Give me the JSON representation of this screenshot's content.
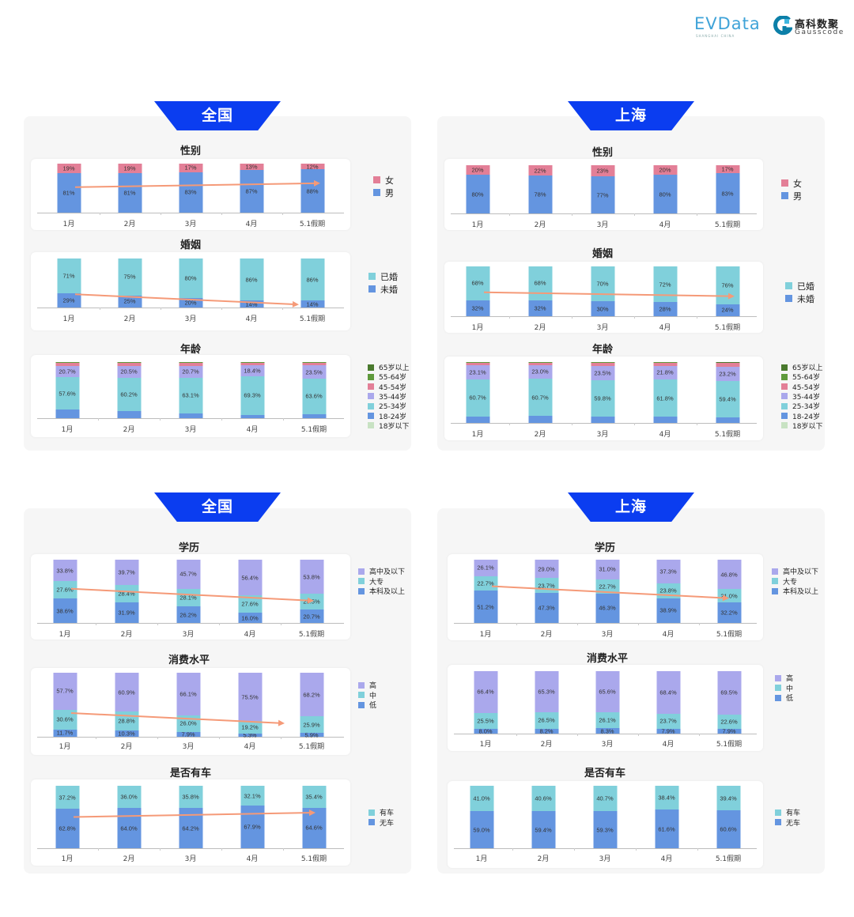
{
  "logos": {
    "evdata": "EVData",
    "evdata_sub": "SHANGHAI CHINA",
    "gauss_cn": "高科数聚",
    "gauss_en": "Gausscode"
  },
  "panels": [
    {
      "region": "全国"
    },
    {
      "region": "上海"
    },
    {
      "region": "全国"
    },
    {
      "region": "上海"
    }
  ],
  "chart_data": [
    {
      "type": "bar",
      "stacked": true,
      "title": "性别",
      "categories": [
        "1月",
        "2月",
        "3月",
        "4月",
        "5.1假期"
      ],
      "ylim": [
        0,
        100
      ],
      "label_decimals": 0,
      "legend": "right",
      "trend_arrow": true,
      "series": [
        {
          "name": "男",
          "color": "#6495e0",
          "show_labels": true,
          "values": [
            81,
            81,
            83,
            87,
            88
          ]
        },
        {
          "name": "女",
          "color": "#e37f97",
          "show_labels": true,
          "values": [
            19,
            19,
            17,
            13,
            12
          ]
        }
      ]
    },
    {
      "type": "bar",
      "stacked": true,
      "title": "婚姻",
      "categories": [
        "1月",
        "2月",
        "3月",
        "4月",
        "5.1假期"
      ],
      "ylim": [
        0,
        100
      ],
      "label_decimals": 0,
      "legend": "right",
      "trend_arrow": true,
      "series": [
        {
          "name": "未婚",
          "color": "#6495e0",
          "show_labels": true,
          "values": [
            29,
            25,
            20,
            14,
            14
          ]
        },
        {
          "name": "已婚",
          "color": "#80d0db",
          "show_labels": true,
          "values": [
            71,
            75,
            80,
            86,
            86
          ]
        }
      ]
    },
    {
      "type": "bar",
      "stacked": true,
      "title": "年龄",
      "categories": [
        "1月",
        "2月",
        "3月",
        "4月",
        "5.1假期"
      ],
      "ylim": [
        0,
        100
      ],
      "label_decimals": 1,
      "legend": "right",
      "trend_arrow": false,
      "series": [
        {
          "name": "18岁以下",
          "color": "#c8e2c3",
          "show_labels": false,
          "values": [
            0,
            0,
            0,
            0,
            0
          ]
        },
        {
          "name": "18-24岁",
          "color": "#6495e0",
          "show_labels": false,
          "values": [
            15,
            12.3,
            9,
            6,
            7
          ]
        },
        {
          "name": "25-34岁",
          "color": "#80d0db",
          "show_labels": true,
          "values": [
            57.6,
            60.2,
            63.1,
            69.3,
            63.6
          ]
        },
        {
          "name": "35-44岁",
          "color": "#aaa8ec",
          "show_labels": true,
          "values": [
            20.7,
            20.5,
            20.7,
            18.4,
            23.5
          ]
        },
        {
          "name": "45-54岁",
          "color": "#e37f97",
          "show_labels": false,
          "values": [
            6.2,
            6.5,
            6.6,
            5.8,
            5.4
          ]
        },
        {
          "name": "55-64岁",
          "color": "#5f9a3c",
          "show_labels": false,
          "values": [
            0.4,
            0.4,
            0.5,
            0.4,
            0.4
          ]
        },
        {
          "name": "65岁以上",
          "color": "#4a7a2e",
          "show_labels": false,
          "values": [
            0.1,
            0.1,
            0.1,
            0.1,
            0.1
          ]
        }
      ]
    },
    {
      "type": "bar",
      "stacked": true,
      "title": "性别",
      "categories": [
        "1月",
        "2月",
        "3月",
        "4月",
        "5.1假期"
      ],
      "ylim": [
        0,
        100
      ],
      "label_decimals": 0,
      "legend": "right",
      "trend_arrow": false,
      "series": [
        {
          "name": "男",
          "color": "#6495e0",
          "show_labels": true,
          "values": [
            80,
            78,
            77,
            80,
            83
          ]
        },
        {
          "name": "女",
          "color": "#e37f97",
          "show_labels": true,
          "values": [
            20,
            22,
            23,
            20,
            17
          ]
        }
      ]
    },
    {
      "type": "bar",
      "stacked": true,
      "title": "婚姻",
      "categories": [
        "1月",
        "2月",
        "3月",
        "4月",
        "5.1假期"
      ],
      "ylim": [
        0,
        100
      ],
      "label_decimals": 0,
      "legend": "right",
      "trend_arrow": true,
      "series": [
        {
          "name": "未婚",
          "color": "#6495e0",
          "show_labels": true,
          "values": [
            32,
            32,
            30,
            28,
            24
          ]
        },
        {
          "name": "已婚",
          "color": "#80d0db",
          "show_labels": true,
          "values": [
            68,
            68,
            70,
            72,
            76
          ]
        }
      ]
    },
    {
      "type": "bar",
      "stacked": true,
      "title": "年龄",
      "categories": [
        "1月",
        "2月",
        "3月",
        "4月",
        "5.1假期"
      ],
      "ylim": [
        0,
        100
      ],
      "label_decimals": 1,
      "legend": "right",
      "trend_arrow": false,
      "series": [
        {
          "name": "18岁以下",
          "color": "#c8e2c3",
          "show_labels": false,
          "values": [
            0,
            0,
            0,
            0,
            0
          ]
        },
        {
          "name": "18-24岁",
          "color": "#6495e0",
          "show_labels": false,
          "values": [
            10.7,
            11.6,
            10.7,
            9.9,
            9.0
          ]
        },
        {
          "name": "25-34岁",
          "color": "#80d0db",
          "show_labels": true,
          "values": [
            60.7,
            60.7,
            59.8,
            61.8,
            59.4
          ]
        },
        {
          "name": "35-44岁",
          "color": "#aaa8ec",
          "show_labels": true,
          "values": [
            23.1,
            23.0,
            23.5,
            21.8,
            23.2
          ]
        },
        {
          "name": "45-54岁",
          "color": "#e37f97",
          "show_labels": false,
          "values": [
            5.0,
            4.3,
            5.5,
            6.0,
            6.6
          ]
        },
        {
          "name": "55-64岁",
          "color": "#5f9a3c",
          "show_labels": false,
          "values": [
            0.4,
            0.3,
            0.4,
            0.4,
            1.5
          ]
        },
        {
          "name": "65岁以上",
          "color": "#4a7a2e",
          "show_labels": false,
          "values": [
            0.1,
            0.1,
            0.1,
            0.1,
            0.3
          ]
        }
      ]
    },
    {
      "type": "bar",
      "stacked": true,
      "title": "学历",
      "categories": [
        "1月",
        "2月",
        "3月",
        "4月",
        "5.1假期"
      ],
      "ylim": [
        0,
        100
      ],
      "label_decimals": 1,
      "legend": "right",
      "trend_arrow": true,
      "series": [
        {
          "name": "本科及以上",
          "color": "#6495e0",
          "show_labels": true,
          "values": [
            38.6,
            31.9,
            26.2,
            16.0,
            20.7
          ]
        },
        {
          "name": "大专",
          "color": "#80d0db",
          "show_labels": true,
          "values": [
            27.6,
            28.4,
            28.1,
            27.6,
            25.5
          ]
        },
        {
          "name": "高中及以下",
          "color": "#aaa8ec",
          "show_labels": true,
          "values": [
            33.8,
            39.7,
            45.7,
            56.4,
            53.8
          ]
        }
      ]
    },
    {
      "type": "bar",
      "stacked": true,
      "title": "消费水平",
      "categories": [
        "1月",
        "2月",
        "3月",
        "4月",
        "5.1假期"
      ],
      "ylim": [
        0,
        100
      ],
      "label_decimals": 1,
      "legend": "right",
      "trend_arrow": true,
      "series": [
        {
          "name": "低",
          "color": "#6495e0",
          "show_labels": true,
          "values": [
            11.7,
            10.3,
            7.9,
            5.3,
            5.9
          ]
        },
        {
          "name": "中",
          "color": "#80d0db",
          "show_labels": true,
          "values": [
            30.6,
            28.8,
            26.0,
            19.2,
            25.9
          ]
        },
        {
          "name": "高",
          "color": "#aaa8ec",
          "show_labels": true,
          "values": [
            57.7,
            60.9,
            66.1,
            75.5,
            68.2
          ]
        }
      ]
    },
    {
      "type": "bar",
      "stacked": true,
      "title": "是否有车",
      "categories": [
        "1月",
        "2月",
        "3月",
        "4月",
        "5.1假期"
      ],
      "ylim": [
        0,
        100
      ],
      "label_decimals": 1,
      "legend": "right",
      "trend_arrow": true,
      "series": [
        {
          "name": "无车",
          "color": "#6495e0",
          "show_labels": true,
          "values": [
            62.8,
            64.0,
            64.2,
            67.9,
            64.6
          ]
        },
        {
          "name": "有车",
          "color": "#80d0db",
          "show_labels": true,
          "values": [
            37.2,
            36.0,
            35.8,
            32.1,
            35.4
          ]
        }
      ]
    },
    {
      "type": "bar",
      "stacked": true,
      "title": "学历",
      "categories": [
        "1月",
        "2月",
        "3月",
        "4月",
        "5.1假期"
      ],
      "ylim": [
        0,
        100
      ],
      "label_decimals": 1,
      "legend": "right",
      "trend_arrow": true,
      "series": [
        {
          "name": "本科及以上",
          "color": "#6495e0",
          "show_labels": true,
          "values": [
            51.2,
            47.3,
            46.3,
            38.9,
            32.2
          ]
        },
        {
          "name": "大专",
          "color": "#80d0db",
          "show_labels": true,
          "values": [
            22.7,
            23.7,
            22.7,
            23.8,
            21.0
          ]
        },
        {
          "name": "高中及以下",
          "color": "#aaa8ec",
          "show_labels": true,
          "values": [
            26.1,
            29.0,
            31.0,
            37.3,
            46.8
          ]
        }
      ]
    },
    {
      "type": "bar",
      "stacked": true,
      "title": "消费水平",
      "categories": [
        "1月",
        "2月",
        "3月",
        "4月",
        "5.1假期"
      ],
      "ylim": [
        0,
        100
      ],
      "label_decimals": 1,
      "legend": "right",
      "trend_arrow": false,
      "series": [
        {
          "name": "低",
          "color": "#6495e0",
          "show_labels": true,
          "values": [
            8.0,
            8.2,
            8.3,
            7.9,
            7.9
          ]
        },
        {
          "name": "中",
          "color": "#80d0db",
          "show_labels": true,
          "values": [
            25.5,
            26.5,
            26.1,
            23.7,
            22.6
          ]
        },
        {
          "name": "高",
          "color": "#aaa8ec",
          "show_labels": true,
          "values": [
            66.4,
            65.3,
            65.6,
            68.4,
            69.5
          ]
        }
      ]
    },
    {
      "type": "bar",
      "stacked": true,
      "title": "是否有车",
      "categories": [
        "1月",
        "2月",
        "3月",
        "4月",
        "5.1假期"
      ],
      "ylim": [
        0,
        100
      ],
      "label_decimals": 1,
      "legend": "right",
      "trend_arrow": false,
      "series": [
        {
          "name": "无车",
          "color": "#6495e0",
          "show_labels": true,
          "values": [
            59.0,
            59.4,
            59.3,
            61.6,
            60.6
          ]
        },
        {
          "name": "有车",
          "color": "#80d0db",
          "show_labels": true,
          "values": [
            41.0,
            40.6,
            40.7,
            38.4,
            39.4
          ]
        }
      ]
    }
  ]
}
